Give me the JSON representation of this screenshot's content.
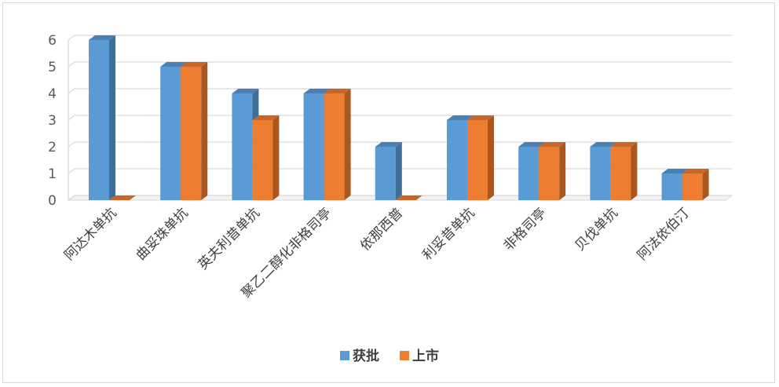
{
  "chart_data": {
    "type": "bar",
    "categories": [
      "阿达木单抗",
      "曲妥珠单抗",
      "英夫利昔单抗",
      "聚乙二醇化非格司亭",
      "依那西普",
      "利妥昔单抗",
      "非格司亭",
      "贝伐单抗",
      "阿法依伯汀"
    ],
    "series": [
      {
        "name": "获批",
        "values": [
          6,
          5,
          4,
          4,
          2,
          3,
          2,
          2,
          1
        ],
        "color": "#5b9bd5",
        "side_color": "#3f6e99",
        "top_color": "#4a80b3"
      },
      {
        "name": "上市",
        "values": [
          0,
          5,
          3,
          4,
          0,
          3,
          2,
          2,
          1
        ],
        "color": "#ed7d31",
        "side_color": "#a9561f",
        "top_color": "#c86626"
      }
    ],
    "yticks": [
      0,
      1,
      2,
      3,
      4,
      5,
      6
    ],
    "ylim": [
      0,
      6
    ],
    "grid": true,
    "style": "3d-clustered-column",
    "legend": "bottom-center"
  }
}
